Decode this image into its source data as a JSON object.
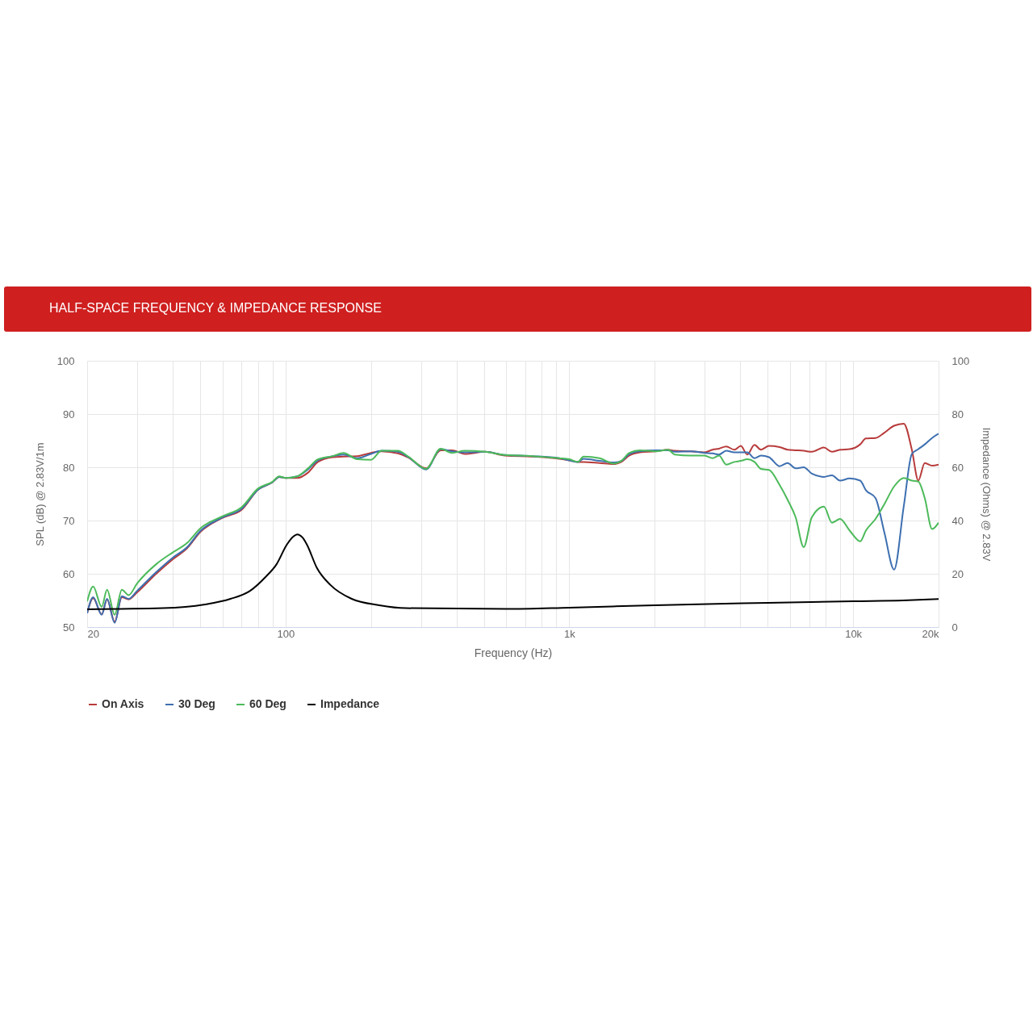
{
  "chart_data": {
    "type": "line",
    "title": "HALF-SPACE FREQUENCY & IMPEDANCE RESPONSE",
    "xlabel": "Frequency (Hz)",
    "ylabel": "SPL (dB) @ 2.83V/1m",
    "y2label": "Impedance (Ohms) @ 2.83V",
    "log": "x",
    "grid": true,
    "legend": "bottom",
    "xlim": [
      20,
      20000
    ],
    "xticks": [
      20,
      {
        "value": 30,
        "label": null
      },
      {
        "value": 40,
        "label": null
      },
      {
        "value": 50,
        "label": null
      },
      {
        "value": 60,
        "label": null
      },
      {
        "value": 70,
        "label": null
      },
      {
        "value": 80,
        "label": null
      },
      {
        "value": 90,
        "label": null
      },
      100,
      {
        "value": 200,
        "label": null
      },
      {
        "value": 300,
        "label": null
      },
      {
        "value": 400,
        "label": null
      },
      {
        "value": 500,
        "label": null
      },
      {
        "value": 600,
        "label": null
      },
      {
        "value": 700,
        "label": null
      },
      {
        "value": 800,
        "label": null
      },
      {
        "value": 900,
        "label": null
      },
      {
        "value": 1000,
        "label": "1k"
      },
      {
        "value": 2000,
        "label": null
      },
      {
        "value": 3000,
        "label": null
      },
      {
        "value": 4000,
        "label": null
      },
      {
        "value": 5000,
        "label": null
      },
      {
        "value": 6000,
        "label": null
      },
      {
        "value": 7000,
        "label": null
      },
      {
        "value": 8000,
        "label": null
      },
      {
        "value": 9000,
        "label": null
      },
      {
        "value": 10000,
        "label": "10k"
      },
      {
        "value": 20000,
        "label": "20k"
      }
    ],
    "ylim": [
      50,
      100
    ],
    "yticks": [
      50,
      60,
      70,
      80,
      90,
      100
    ],
    "y2lim": [
      0,
      100
    ],
    "y2ticks": [
      0,
      20,
      40,
      60,
      80,
      100
    ],
    "x": [
      20,
      21,
      22.5,
      23.5,
      25,
      26.5,
      28,
      30,
      35,
      40,
      45,
      50,
      60,
      70,
      80,
      90,
      95,
      100,
      110,
      120,
      130,
      147,
      160,
      179,
      200,
      218,
      249,
      271,
      313,
      352,
      386,
      428,
      505,
      594,
      742,
      921,
      1000,
      1071,
      1122,
      1278,
      1429,
      1525,
      1628,
      1773,
      2021,
      2230,
      2350,
      2679,
      2993,
      3197,
      3368,
      3571,
      3814,
      4020,
      4236,
      4492,
      4733,
      5053,
      5504,
      5875,
      6272,
      6697,
      7151,
      7889,
      8422,
      8992,
      9725,
      10590,
      11087,
      11992,
      12891,
      13943,
      15080,
      16100,
      16968,
      17880,
      18968,
      20000
    ],
    "series": [
      {
        "name": "On Axis",
        "color": "#b83b3b",
        "values": [
          52.6,
          55.4,
          52.4,
          55.2,
          51,
          55.6,
          55.2,
          56.5,
          60,
          62.7,
          64.8,
          67.8,
          70.5,
          72,
          75.8,
          77.2,
          78.2,
          78,
          78,
          79,
          81,
          81.9,
          82,
          82.1,
          82.7,
          83,
          82.6,
          81.8,
          79.8,
          83.2,
          83.2,
          82.5,
          82.9,
          82.2,
          82,
          81.6,
          81.3,
          81,
          81,
          80.8,
          80.6,
          81,
          82.2,
          82.8,
          83,
          83.3,
          83.1,
          83,
          82.8,
          83.3,
          83.5,
          83.9,
          83.3,
          84,
          82.4,
          84.2,
          83.3,
          84,
          83.8,
          83.3,
          83.2,
          83.1,
          82.9,
          83.7,
          82.9,
          83.3,
          83.4,
          84.3,
          85.4,
          85.5,
          86.5,
          87.8,
          88.2,
          83.3,
          77.5,
          80.8,
          80.3,
          80.5
        ]
      },
      {
        "name": "30 Deg",
        "color": "#3d6fb0",
        "values": [
          52.6,
          55.6,
          52.3,
          55.3,
          50.8,
          55.8,
          55.3,
          56.8,
          60.3,
          63,
          65,
          68,
          70.6,
          72.2,
          75.8,
          77.2,
          78.2,
          78,
          78.3,
          79.6,
          81.3,
          82.1,
          82.4,
          81.7,
          82.5,
          83.1,
          82.9,
          81.9,
          79.6,
          83.4,
          83,
          82.8,
          82.9,
          82.3,
          82.1,
          81.7,
          81.3,
          81,
          81.6,
          81.2,
          80.9,
          81.2,
          82.5,
          83,
          83.2,
          83.2,
          82.9,
          83,
          82.7,
          82.6,
          82.4,
          83.1,
          82.8,
          82.8,
          82.8,
          81.7,
          82.2,
          81.9,
          80.2,
          80.8,
          79.8,
          80,
          78.8,
          78.2,
          78.5,
          77.5,
          77.9,
          77.5,
          75.7,
          74.2,
          67.7,
          60.8,
          72.7,
          82.5,
          83.4,
          84.3,
          85.5,
          86.3
        ]
      },
      {
        "name": "60 Deg",
        "color": "#4cba5a",
        "values": [
          54.8,
          57.6,
          53.8,
          57,
          52.3,
          57,
          56,
          58.2,
          61.8,
          64,
          65.8,
          68.5,
          70.8,
          72.5,
          76,
          77.3,
          78.3,
          78,
          78.3,
          79.8,
          81.5,
          82.1,
          82.7,
          81.5,
          81.4,
          83.1,
          83.1,
          82,
          79.7,
          83.5,
          82.7,
          83.1,
          82.9,
          82.3,
          82.1,
          81.7,
          81.5,
          81,
          82,
          81.7,
          80.7,
          81.2,
          82.7,
          83.2,
          83,
          83.3,
          82.4,
          82.2,
          82.2,
          81.7,
          82.2,
          80.5,
          81,
          81.2,
          81.5,
          81,
          79.7,
          79.5,
          76.7,
          73.9,
          70.6,
          65,
          70.6,
          72.6,
          69.6,
          70.3,
          68.1,
          66.1,
          68.1,
          70.3,
          73.1,
          76.4,
          78,
          77.5,
          77.3,
          74.2,
          68.4,
          69.6
        ]
      },
      {
        "name": "Impedance",
        "color": "#000000",
        "axis": "y2",
        "x": [
          20,
          37,
          52,
          64,
          75,
          85,
          93,
          101,
          106,
          110,
          115,
          119,
          129,
          144,
          171,
          214,
          265,
          600,
          1000,
          2000,
          5000,
          10000,
          15000,
          20000
        ],
        "values": [
          6.7,
          7.1,
          8.5,
          10.6,
          13.6,
          18.8,
          23.6,
          30.9,
          33.8,
          34.8,
          33.5,
          30.9,
          22.2,
          15.8,
          10.6,
          8.2,
          7.1,
          6.8,
          7.3,
          8.2,
          9.1,
          9.7,
          10,
          10.5
        ]
      }
    ]
  }
}
